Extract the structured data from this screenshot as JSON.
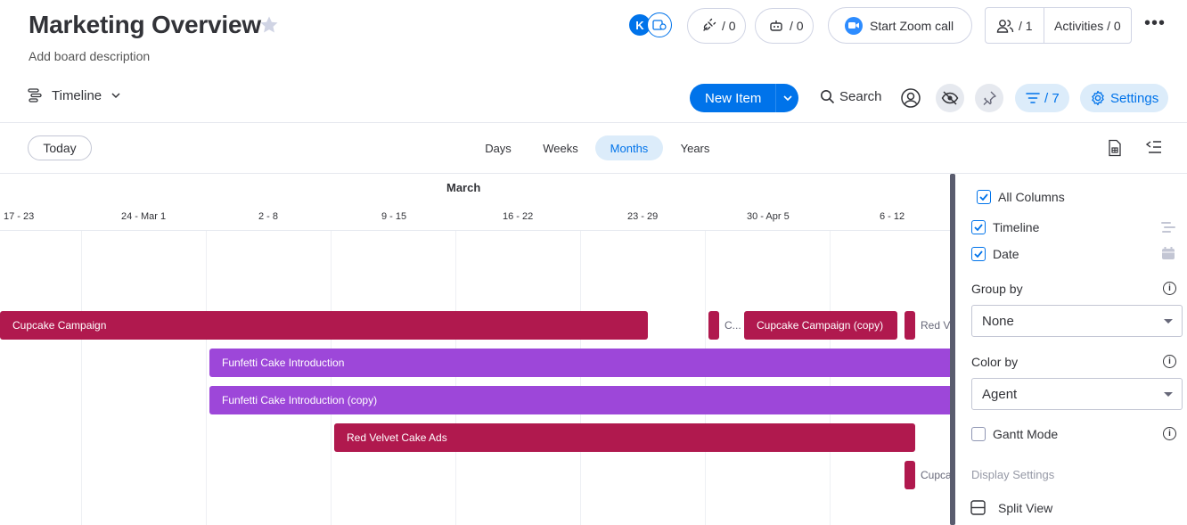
{
  "header": {
    "title": "Marketing Overview",
    "description": "Add board description",
    "avatar_initial": "K",
    "integrations_count": "/ 0",
    "automations_count": "/ 0",
    "zoom_label": "Start Zoom call",
    "members_count": "/ 1",
    "activities_label": "Activities / 0",
    "more_label": "•••"
  },
  "toolbar": {
    "view_label": "Timeline",
    "new_item_label": "New Item",
    "search_label": "Search",
    "filter_count": "/ 7",
    "settings_label": "Settings"
  },
  "timeline": {
    "today_label": "Today",
    "scales": [
      "Days",
      "Weeks",
      "Months",
      "Years"
    ],
    "active_scale": "Months",
    "month_label": "March",
    "weeks": [
      "17 - 23",
      "24 - Mar 1",
      "2 - 8",
      "9 - 15",
      "16 - 22",
      "23 - 29",
      "30 - Apr 5",
      "6 - 12"
    ],
    "bars": [
      {
        "label": "Cupcake Campaign",
        "color": "#b0194e"
      },
      {
        "label": "C...",
        "color": "#b0194e"
      },
      {
        "label": "Cupcake Campaign (copy)",
        "color": "#b0194e"
      },
      {
        "label": "",
        "color": "#b0194e"
      },
      {
        "label": "Funfetti Cake Introduction",
        "color": "#9d47d9"
      },
      {
        "label": "Funfetti Cake Introduction (copy)",
        "color": "#9d47d9"
      },
      {
        "label": "Red Velvet Cake Ads",
        "color": "#b0194e"
      },
      {
        "label": "",
        "color": "#b0194e"
      }
    ],
    "outside_labels": [
      "Red V",
      "Cupca"
    ]
  },
  "panel": {
    "all_columns_label": "All Columns",
    "columns": [
      {
        "label": "Timeline",
        "checked": true
      },
      {
        "label": "Date",
        "checked": true
      }
    ],
    "group_by_label": "Group by",
    "group_by_value": "None",
    "color_by_label": "Color by",
    "color_by_value": "Agent",
    "gantt_label": "Gantt Mode",
    "display_settings_label": "Display Settings",
    "split_view_label": "Split View"
  }
}
